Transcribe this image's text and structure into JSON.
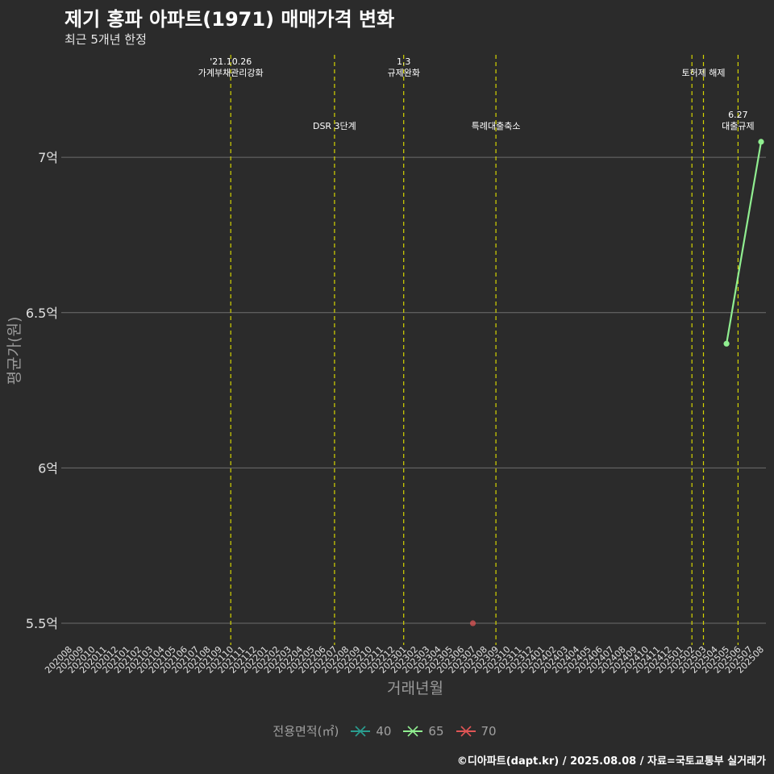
{
  "header": {
    "title": "제기 홍파 아파트(1971) 매매가격 변화",
    "subtitle": "최근 5개년 한정"
  },
  "footer": {
    "caption": "©디아파트(dapt.kr) / 2025.08.08 / 자료=국토교통부 실거래가"
  },
  "legend": {
    "title": "전용면적(㎡)",
    "items": [
      {
        "label": "40",
        "color": "#2a9d8f"
      },
      {
        "label": "65",
        "color": "#90ee90"
      },
      {
        "label": "70",
        "color": "#e05555"
      }
    ]
  },
  "colors": {
    "background": "#2b2b2b",
    "grid": "#6e6e6e",
    "event_line": "#d4d400",
    "axis_text": "#e0e0e0",
    "axis_title": "#9a9a9a"
  },
  "chart_data": {
    "type": "line",
    "title": "제기 홍파 아파트(1971) 매매가격 변화",
    "subtitle": "최근 5개년 한정",
    "xlabel": "거래년월",
    "ylabel": "평균가(원)",
    "ylim": [
      5.43,
      7.33
    ],
    "yticks": [
      {
        "value": 5.5,
        "label": "5.5억"
      },
      {
        "value": 6.0,
        "label": "6억"
      },
      {
        "value": 6.5,
        "label": "6.5억"
      },
      {
        "value": 7.0,
        "label": "7억"
      }
    ],
    "categories": [
      "202008",
      "202009",
      "202010",
      "202011",
      "202012",
      "202101",
      "202102",
      "202103",
      "202104",
      "202105",
      "202106",
      "202107",
      "202108",
      "202109",
      "202110",
      "202111",
      "202112",
      "202201",
      "202202",
      "202203",
      "202204",
      "202205",
      "202206",
      "202207",
      "202208",
      "202209",
      "202210",
      "202211",
      "202212",
      "202301",
      "202302",
      "202303",
      "202304",
      "202305",
      "202306",
      "202307",
      "202308",
      "202309",
      "202310",
      "202311",
      "202312",
      "202401",
      "202402",
      "202403",
      "202404",
      "202405",
      "202406",
      "202407",
      "202408",
      "202409",
      "202410",
      "202411",
      "202412",
      "202501",
      "202502",
      "202503",
      "202504",
      "202505",
      "202506",
      "202507",
      "202508"
    ],
    "series": [
      {
        "name": "40",
        "color": "#2a9d8f",
        "points": []
      },
      {
        "name": "65",
        "color": "#90ee90",
        "points": [
          {
            "x": "202505",
            "y": 6.4
          },
          {
            "x": "202508",
            "y": 7.05
          }
        ]
      },
      {
        "name": "70",
        "color": "#e05555",
        "points": [
          {
            "x": "202307",
            "y": 5.5
          }
        ]
      }
    ],
    "events": [
      {
        "x": "202110",
        "lines": [
          "'21.10.26",
          "가계부채관리강화"
        ],
        "row": "top"
      },
      {
        "x": "202207",
        "lines": [
          "DSR 3단계"
        ],
        "row": "mid"
      },
      {
        "x": "202301",
        "lines": [
          "1.3",
          "규제완화"
        ],
        "row": "top"
      },
      {
        "x": "202309",
        "lines": [
          "특례대출축소"
        ],
        "row": "mid"
      },
      {
        "x": "202502",
        "lines": [],
        "row": "top"
      },
      {
        "x": "202503",
        "lines": [
          "토허제 해제"
        ],
        "row": "top"
      },
      {
        "x": "202506",
        "lines": [
          "6.27",
          "대출규제"
        ],
        "row": "mid"
      }
    ]
  }
}
